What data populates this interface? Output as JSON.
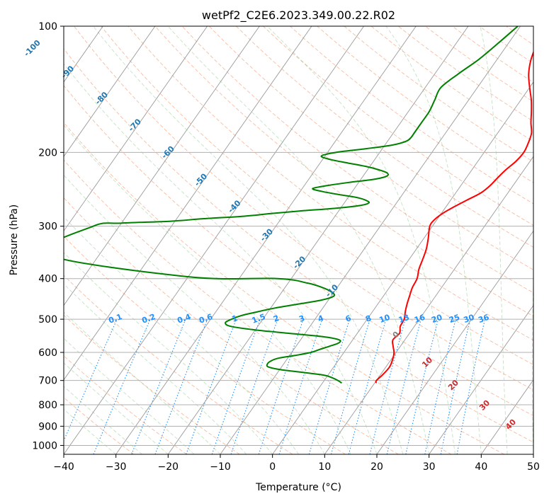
{
  "chart_data": {
    "type": "line",
    "title": "wetPf2_C2E6.2023.349.00.22.R02",
    "xlabel": "Temperature (°C)",
    "ylabel": "Pressure (hPa)",
    "xlim": [
      -40,
      50
    ],
    "ylim": [
      1050,
      100
    ],
    "y_scale": "log",
    "grid": true,
    "x_ticks": [
      -40,
      -30,
      -20,
      -10,
      0,
      10,
      20,
      30,
      40,
      50
    ],
    "y_ticks": [
      100,
      200,
      300,
      400,
      500,
      600,
      700,
      800,
      900,
      1000
    ],
    "colors": {
      "temperature": "#ff0000",
      "dewpoint": "#008000",
      "isotherm_labels": "#1f77b4",
      "mixing_ratio": "#1e90ff",
      "moist_adiabat_labels": "#d62728",
      "zero_label": "#808080"
    },
    "series": [
      {
        "p": [
          710,
          700,
          680,
          650,
          620,
          600,
          580,
          560,
          540,
          520,
          500,
          480,
          460,
          440,
          420,
          400,
          380,
          360,
          340,
          320,
          300,
          290,
          280,
          270,
          260,
          250,
          240,
          230,
          220,
          210,
          200,
          190,
          180,
          170,
          160,
          150,
          140,
          130,
          120,
          110,
          100
        ],
        "t": [
          10.3,
          10.0,
          10.4,
          10.7,
          10.2,
          9.6,
          8.6,
          7.7,
          8.1,
          7.3,
          7.1,
          6.3,
          5.6,
          5.0,
          4.4,
          4.1,
          3.2,
          2.6,
          1.9,
          0.8,
          -0.5,
          -0.5,
          0.2,
          1.5,
          3.1,
          4.8,
          5.6,
          6.0,
          6.5,
          7.3,
          7.6,
          7.2,
          6.5,
          5.0,
          3.6,
          2.0,
          0.0,
          -2.0,
          -3.5,
          -4.5,
          -5.5
        ]
      },
      {
        "p": [
          710,
          700,
          690,
          680,
          670,
          660,
          650,
          640,
          630,
          620,
          610,
          600,
          590,
          580,
          570,
          560,
          550,
          540,
          530,
          520,
          510,
          500,
          490,
          480,
          470,
          460,
          450,
          440,
          430,
          420,
          410,
          400,
          396,
          350,
          300,
          295,
          292,
          288,
          284,
          280,
          276,
          272,
          268,
          264,
          260,
          256,
          252,
          248,
          244,
          240,
          236,
          232,
          228,
          224,
          220,
          216,
          212,
          208,
          204,
          200,
          196,
          192,
          188,
          184,
          180,
          170,
          160,
          150,
          140,
          130,
          120,
          110,
          100
        ],
        "td": [
          3.7,
          2.6,
          1.2,
          -0.7,
          -5.0,
          -9.7,
          -12.5,
          -13.1,
          -12.9,
          -11.9,
          -8.9,
          -6.3,
          -5.0,
          -3.6,
          -2.3,
          -2.6,
          -6.3,
          -13.3,
          -20.2,
          -25.2,
          -26.7,
          -26.0,
          -24.6,
          -22.0,
          -19.1,
          -15.2,
          -11.3,
          -9.5,
          -10.6,
          -12.9,
          -16.3,
          -22.6,
          -40.0,
          -70.0,
          -65.0,
          -60.0,
          -51.0,
          -45.0,
          -37.5,
          -32.8,
          -27.5,
          -21.2,
          -16.8,
          -15.3,
          -16.3,
          -18.5,
          -22.3,
          -25.7,
          -28.0,
          -25.6,
          -22.0,
          -17.6,
          -15.5,
          -15.8,
          -17.9,
          -20.8,
          -24.7,
          -28.5,
          -30.7,
          -28.4,
          -23.1,
          -18.5,
          -16.4,
          -16.0,
          -16.0,
          -16.0,
          -16.0,
          -16.5,
          -17.0,
          -15.5,
          -13.5,
          -12.0,
          -10.5
        ]
      }
    ],
    "isotherm_labels": [
      "-100",
      "-90",
      "-80",
      "-70",
      "-60",
      "-50",
      "-40",
      "-30",
      "-20",
      "-10"
    ],
    "mixing_ratio_labels": [
      "0.1",
      "0.2",
      "0.4",
      "0.6",
      "1",
      "1.5",
      "2",
      "3",
      "4",
      "6",
      "8",
      "10",
      "13",
      "16",
      "20",
      "25",
      "30",
      "36"
    ],
    "moist_adiabat_labels": [
      "0",
      "10",
      "20",
      "30",
      "40"
    ]
  }
}
